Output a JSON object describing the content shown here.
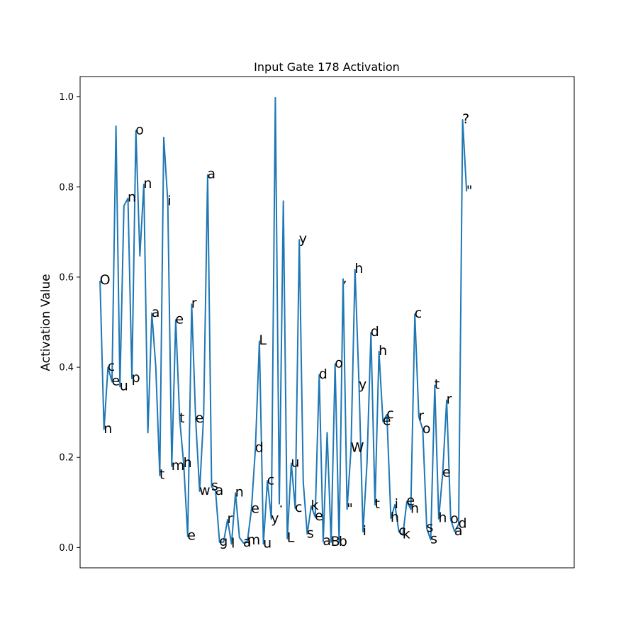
{
  "chart_data": {
    "type": "line",
    "title": "Input Gate 178 Activation",
    "xlabel": "",
    "ylabel": "Activation Value",
    "ylim": [
      -0.045,
      1.045
    ],
    "xlim": [
      -5,
      119
    ],
    "xticks_visible": false,
    "grid": false,
    "line_color": "#1f77b4",
    "y_ticks": [
      0.0,
      0.2,
      0.4,
      0.6,
      0.8,
      1.0
    ],
    "y_tick_labels": [
      "0.0",
      "0.2",
      "0.4",
      "0.6",
      "0.8",
      "1.0"
    ],
    "chars": [
      "O",
      "n",
      "c",
      "e",
      "u",
      "n",
      "p",
      "o",
      "n",
      "a",
      "t",
      "i",
      "m",
      "e",
      "t",
      "h",
      "e",
      "r",
      "e",
      "w",
      "a",
      "s",
      "a",
      "g",
      "r",
      "l",
      "n",
      "a",
      "m",
      "e",
      "d",
      "L",
      "u",
      "c",
      "y",
      ".",
      "L",
      "u",
      "c",
      "y",
      "s",
      "k",
      "e",
      "d",
      "a",
      "B",
      "o",
      "b",
      ",",
      "\"",
      "W",
      "h",
      "y",
      "i",
      "d",
      "t",
      "h",
      "e",
      "c",
      "h",
      "i",
      "c",
      "k",
      "e",
      "n",
      "c",
      "r",
      "o",
      "s",
      "s",
      "t",
      "h",
      "e",
      "r",
      "o",
      "a",
      "d",
      "?",
      "\""
    ],
    "values": [
      0.592,
      0.262,
      0.4,
      0.368,
      0.935,
      0.357,
      0.758,
      0.775,
      0.375,
      0.925,
      0.647,
      0.806,
      0.255,
      0.52,
      0.4,
      0.16,
      0.91,
      0.767,
      0.18,
      0.505,
      0.285,
      0.186,
      0.025,
      0.54,
      0.285,
      0.125,
      0.295,
      0.827,
      0.135,
      0.125,
      0.012,
      0.012,
      0.062,
      0.008,
      0.121,
      0.022,
      0.01,
      0.015,
      0.085,
      0.22,
      0.458,
      0.008,
      0.148,
      0.063,
      0.998,
      0.097,
      0.769,
      0.02,
      0.187,
      0.087,
      0.683,
      0.145,
      0.03,
      0.092,
      0.068,
      0.383,
      0.013,
      0.255,
      0.012,
      0.407,
      0.012,
      0.596,
      0.085,
      0.22,
      0.617,
      0.36,
      0.035,
      0.187,
      0.477,
      0.095,
      0.435,
      0.28,
      0.295,
      0.065,
      0.095,
      0.035,
      0.028,
      0.102,
      0.085,
      0.518,
      0.29,
      0.262,
      0.043,
      0.017,
      0.36,
      0.064,
      0.165,
      0.327,
      0.062,
      0.035,
      0.052,
      0.949,
      0.79
    ],
    "label_positions": [
      0,
      1,
      2,
      3,
      5,
      7,
      8,
      9,
      11,
      13,
      15,
      17,
      18,
      19,
      20,
      21,
      22,
      23,
      24,
      25,
      27,
      28,
      29,
      30,
      32,
      33,
      34,
      36,
      37,
      38,
      39,
      40,
      41,
      42,
      43,
      45,
      47,
      48,
      49,
      50,
      52,
      53,
      54,
      55,
      56,
      58,
      59,
      60,
      61,
      62,
      63,
      64,
      65,
      66,
      68,
      69,
      70,
      71,
      72,
      73,
      74,
      75,
      76,
      77,
      78,
      79,
      80,
      81,
      82,
      83,
      84,
      85,
      86,
      87,
      88,
      89,
      90,
      91,
      92
    ]
  }
}
